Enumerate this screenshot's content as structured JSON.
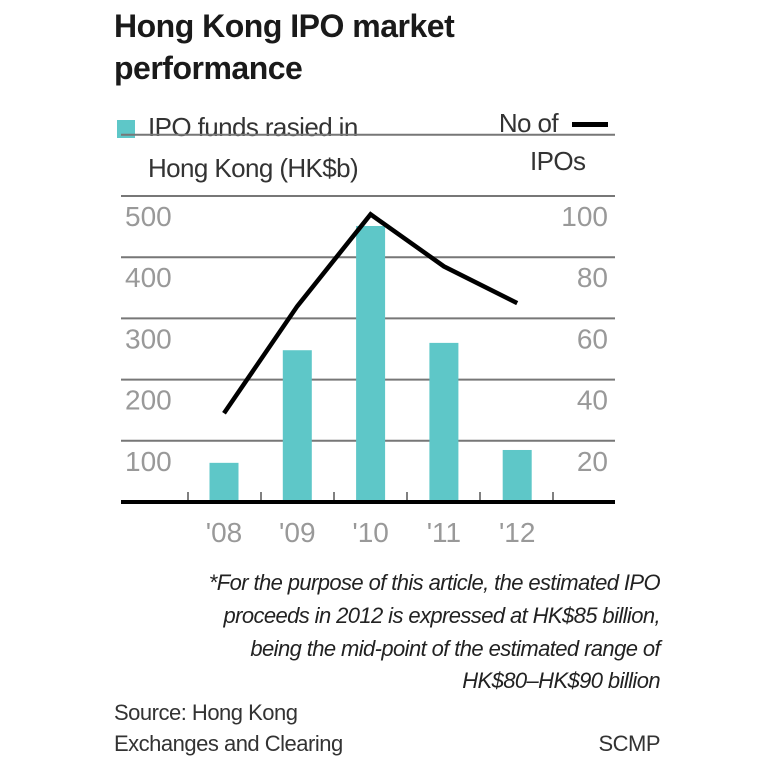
{
  "chart_data": {
    "type": "bar+line",
    "title": "Hong Kong IPO market performance",
    "categories": [
      "'08",
      "'09",
      "'10",
      "'11",
      "'12"
    ],
    "series": [
      {
        "name": "IPO funds rasied in Hong Kong (HK$b)",
        "type": "bar",
        "axis": "left",
        "values": [
          64,
          248,
          451,
          260,
          85
        ],
        "color": "#5ec7c8"
      },
      {
        "name": "No of IPOs",
        "type": "line",
        "axis": "right",
        "values": [
          29,
          64,
          94,
          77,
          65
        ],
        "color": "#000000"
      }
    ],
    "left_axis": {
      "ylim": [
        0,
        500
      ],
      "ticks": [
        "100",
        "200",
        "300",
        "400",
        "500"
      ]
    },
    "right_axis": {
      "ylim": [
        0,
        100
      ],
      "ticks": [
        "20",
        "40",
        "60",
        "80",
        "100"
      ]
    },
    "grid": true,
    "legend": {
      "bar_label_lines": [
        "IPO funds rasied in",
        "Hong Kong (HK$b)"
      ],
      "line_label_lines": [
        "No of",
        "IPOs"
      ],
      "placement": "top"
    },
    "title_lines": [
      "Hong Kong IPO market",
      "performance"
    ],
    "note_lines": [
      "*For the purpose of this article, the estimated IPO",
      "proceeds in 2012 is expressed at HK$85 billion,",
      "being the mid-point of the estimated range of",
      "HK$80–HK$90 billion"
    ],
    "source_lines": [
      "Source: Hong Kong",
      "Exchanges and Clearing"
    ],
    "credit": "SCMP"
  }
}
